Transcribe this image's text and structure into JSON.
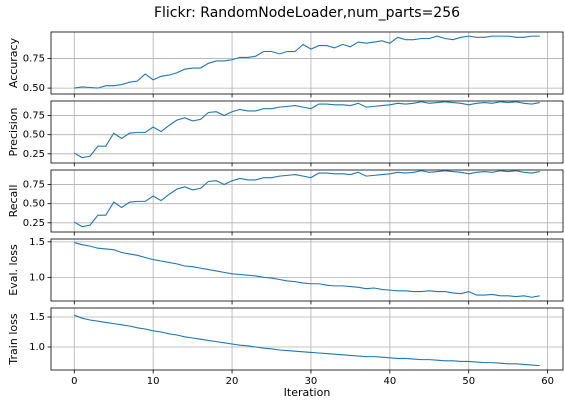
{
  "title": "Flickr: RandomNodeLoader,num_parts=256",
  "chart_data": [
    {
      "type": "line",
      "ylabel": "Accuracy",
      "x": [
        0,
        1,
        2,
        3,
        4,
        5,
        6,
        7,
        8,
        9,
        10,
        11,
        12,
        13,
        14,
        15,
        16,
        17,
        18,
        19,
        20,
        21,
        22,
        23,
        24,
        25,
        26,
        27,
        28,
        29,
        30,
        31,
        32,
        33,
        34,
        35,
        36,
        37,
        38,
        39,
        40,
        41,
        42,
        43,
        44,
        45,
        46,
        47,
        48,
        49,
        50,
        51,
        52,
        53,
        54,
        55,
        56,
        57,
        58,
        59
      ],
      "series": [
        {
          "color": "#1f77b4",
          "values": [
            0.5,
            0.51,
            0.505,
            0.5,
            0.52,
            0.52,
            0.53,
            0.55,
            0.56,
            0.62,
            0.57,
            0.6,
            0.61,
            0.63,
            0.66,
            0.67,
            0.67,
            0.71,
            0.73,
            0.73,
            0.74,
            0.76,
            0.76,
            0.77,
            0.81,
            0.81,
            0.79,
            0.81,
            0.81,
            0.87,
            0.83,
            0.86,
            0.86,
            0.84,
            0.87,
            0.85,
            0.89,
            0.88,
            0.89,
            0.9,
            0.88,
            0.93,
            0.91,
            0.91,
            0.92,
            0.92,
            0.94,
            0.92,
            0.91,
            0.93,
            0.94,
            0.93,
            0.93,
            0.94,
            0.94,
            0.94,
            0.93,
            0.93,
            0.94,
            0.94
          ]
        }
      ],
      "xlim": [
        -2.95,
        61.95
      ],
      "xticks": [
        0,
        10,
        20,
        30,
        40,
        50,
        60
      ],
      "ylim": [
        0.45,
        0.975
      ],
      "yticks": [
        {
          "value": 0.5,
          "label": "0.50"
        },
        0.75
      ],
      "grid": true
    },
    {
      "type": "line",
      "ylabel": "Precision",
      "x": [
        0,
        1,
        2,
        3,
        4,
        5,
        6,
        7,
        8,
        9,
        10,
        11,
        12,
        13,
        14,
        15,
        16,
        17,
        18,
        19,
        20,
        21,
        22,
        23,
        24,
        25,
        26,
        27,
        28,
        29,
        30,
        31,
        32,
        33,
        34,
        35,
        36,
        37,
        38,
        39,
        40,
        41,
        42,
        43,
        44,
        45,
        46,
        47,
        48,
        49,
        50,
        51,
        52,
        53,
        54,
        55,
        56,
        57,
        58,
        59
      ],
      "series": [
        {
          "color": "#1f77b4",
          "values": [
            0.26,
            0.2,
            0.22,
            0.35,
            0.35,
            0.52,
            0.45,
            0.52,
            0.53,
            0.53,
            0.6,
            0.54,
            0.62,
            0.69,
            0.72,
            0.68,
            0.7,
            0.79,
            0.8,
            0.75,
            0.8,
            0.83,
            0.81,
            0.81,
            0.84,
            0.84,
            0.86,
            0.87,
            0.88,
            0.86,
            0.84,
            0.9,
            0.9,
            0.89,
            0.89,
            0.88,
            0.91,
            0.86,
            0.87,
            0.88,
            0.89,
            0.91,
            0.9,
            0.91,
            0.93,
            0.91,
            0.92,
            0.93,
            0.92,
            0.91,
            0.89,
            0.91,
            0.92,
            0.91,
            0.93,
            0.92,
            0.93,
            0.91,
            0.9,
            0.92
          ]
        }
      ],
      "xlim": [
        -2.95,
        61.95
      ],
      "xticks": [
        0,
        10,
        20,
        30,
        40,
        50,
        60
      ],
      "ylim": [
        0.13,
        0.94
      ],
      "yticks": [
        0.25,
        {
          "value": 0.5,
          "label": "0.50"
        },
        0.75
      ],
      "grid": true
    },
    {
      "type": "line",
      "ylabel": "Recall",
      "x": [
        0,
        1,
        2,
        3,
        4,
        5,
        6,
        7,
        8,
        9,
        10,
        11,
        12,
        13,
        14,
        15,
        16,
        17,
        18,
        19,
        20,
        21,
        22,
        23,
        24,
        25,
        26,
        27,
        28,
        29,
        30,
        31,
        32,
        33,
        34,
        35,
        36,
        37,
        38,
        39,
        40,
        41,
        42,
        43,
        44,
        45,
        46,
        47,
        48,
        49,
        50,
        51,
        52,
        53,
        54,
        55,
        56,
        57,
        58,
        59
      ],
      "series": [
        {
          "color": "#1f77b4",
          "values": [
            0.26,
            0.2,
            0.22,
            0.35,
            0.35,
            0.52,
            0.45,
            0.52,
            0.53,
            0.53,
            0.6,
            0.54,
            0.62,
            0.69,
            0.72,
            0.68,
            0.7,
            0.79,
            0.8,
            0.75,
            0.8,
            0.83,
            0.81,
            0.81,
            0.84,
            0.84,
            0.86,
            0.87,
            0.88,
            0.86,
            0.84,
            0.9,
            0.9,
            0.89,
            0.89,
            0.88,
            0.91,
            0.86,
            0.87,
            0.88,
            0.89,
            0.91,
            0.9,
            0.91,
            0.93,
            0.91,
            0.92,
            0.93,
            0.92,
            0.91,
            0.89,
            0.91,
            0.92,
            0.91,
            0.93,
            0.92,
            0.93,
            0.91,
            0.9,
            0.92
          ]
        }
      ],
      "xlim": [
        -2.95,
        61.95
      ],
      "xticks": [
        0,
        10,
        20,
        30,
        40,
        50,
        60
      ],
      "ylim": [
        0.13,
        0.94
      ],
      "yticks": [
        0.25,
        {
          "value": 0.5,
          "label": "0.50"
        },
        0.75
      ],
      "grid": true
    },
    {
      "type": "line",
      "ylabel": "Eval. loss",
      "x": [
        0,
        1,
        2,
        3,
        4,
        5,
        6,
        7,
        8,
        9,
        10,
        11,
        12,
        13,
        14,
        15,
        16,
        17,
        18,
        19,
        20,
        21,
        22,
        23,
        24,
        25,
        26,
        27,
        28,
        29,
        30,
        31,
        32,
        33,
        34,
        35,
        36,
        37,
        38,
        39,
        40,
        41,
        42,
        43,
        44,
        45,
        46,
        47,
        48,
        49,
        50,
        51,
        52,
        53,
        54,
        55,
        56,
        57,
        58,
        59
      ],
      "series": [
        {
          "color": "#1f77b4",
          "values": [
            1.49,
            1.46,
            1.44,
            1.41,
            1.4,
            1.39,
            1.35,
            1.33,
            1.31,
            1.28,
            1.25,
            1.23,
            1.21,
            1.19,
            1.16,
            1.15,
            1.13,
            1.11,
            1.09,
            1.07,
            1.05,
            1.04,
            1.03,
            1.02,
            1.0,
            0.99,
            0.97,
            0.95,
            0.94,
            0.92,
            0.91,
            0.91,
            0.89,
            0.88,
            0.88,
            0.87,
            0.86,
            0.84,
            0.85,
            0.83,
            0.82,
            0.81,
            0.81,
            0.8,
            0.8,
            0.81,
            0.8,
            0.8,
            0.78,
            0.77,
            0.8,
            0.75,
            0.75,
            0.76,
            0.74,
            0.74,
            0.73,
            0.74,
            0.72,
            0.74
          ]
        }
      ],
      "xlim": [
        -2.95,
        61.95
      ],
      "xticks": [
        0,
        10,
        20,
        30,
        40,
        50,
        60
      ],
      "ylim": [
        0.667,
        1.54
      ],
      "yticks": [
        {
          "value": 1.0,
          "label": "1.0"
        },
        1.5
      ],
      "grid": true
    },
    {
      "type": "line",
      "ylabel": "Train loss",
      "xlabel": "Iteration",
      "x": [
        0,
        1,
        2,
        3,
        4,
        5,
        6,
        7,
        8,
        9,
        10,
        11,
        12,
        13,
        14,
        15,
        16,
        17,
        18,
        19,
        20,
        21,
        22,
        23,
        24,
        25,
        26,
        27,
        28,
        29,
        30,
        31,
        32,
        33,
        34,
        35,
        36,
        37,
        38,
        39,
        40,
        41,
        42,
        43,
        44,
        45,
        46,
        47,
        48,
        49,
        50,
        51,
        52,
        53,
        54,
        55,
        56,
        57,
        58,
        59
      ],
      "series": [
        {
          "color": "#1f77b4",
          "values": [
            1.53,
            1.48,
            1.45,
            1.43,
            1.41,
            1.39,
            1.37,
            1.35,
            1.32,
            1.3,
            1.27,
            1.25,
            1.22,
            1.2,
            1.17,
            1.15,
            1.13,
            1.11,
            1.09,
            1.07,
            1.05,
            1.03,
            1.02,
            1.0,
            0.98,
            0.97,
            0.95,
            0.94,
            0.93,
            0.92,
            0.91,
            0.9,
            0.89,
            0.88,
            0.87,
            0.86,
            0.85,
            0.84,
            0.84,
            0.83,
            0.82,
            0.81,
            0.81,
            0.8,
            0.79,
            0.79,
            0.78,
            0.77,
            0.77,
            0.76,
            0.76,
            0.75,
            0.74,
            0.74,
            0.73,
            0.72,
            0.72,
            0.71,
            0.7,
            0.69
          ]
        }
      ],
      "xlim": [
        -2.95,
        61.95
      ],
      "xticks": [
        0,
        10,
        20,
        30,
        40,
        50,
        60
      ],
      "ylim": [
        0.617,
        1.65
      ],
      "yticks": [
        {
          "value": 1.0,
          "label": "1.0"
        },
        1.5
      ],
      "grid": true
    }
  ]
}
